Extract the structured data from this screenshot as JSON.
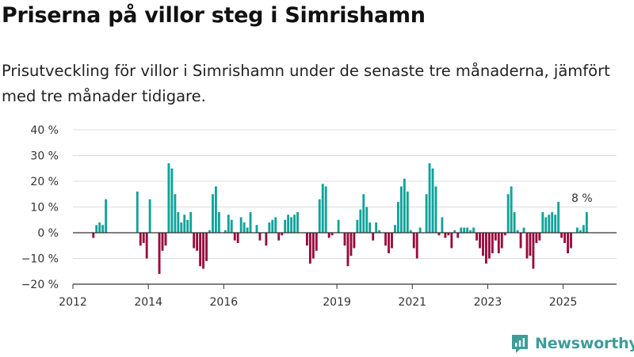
{
  "title": "Priserna på villor steg i Simrishamn",
  "subtitle": "Prisutveckling för villor i Simrishamn under de senaste tre månaderna, jämfört med tre månader tidigare.",
  "brand": {
    "name": "Newsworthy",
    "color": "#3e9d9a"
  },
  "chart_data": {
    "type": "bar",
    "x_unit": "month",
    "ylim": [
      -20,
      40
    ],
    "yticks": [
      -20,
      -10,
      0,
      10,
      20,
      30,
      40
    ],
    "ytick_labels": [
      "−20 %",
      "−10 %",
      "0 %",
      "10 %",
      "20 %",
      "30 %",
      "40 %"
    ],
    "xlim": [
      "2012-01",
      "2026-06"
    ],
    "xticks": [
      "2012-01",
      "2014-01",
      "2016-01",
      "2019-01",
      "2021-01",
      "2023-01",
      "2025-01"
    ],
    "xtick_labels": [
      "2012",
      "2014",
      "2016",
      "2019",
      "2021",
      "2023",
      "2025"
    ],
    "grid": true,
    "positive_color": "#0fa39a",
    "negative_color": "#990a3c",
    "annotation": {
      "text": "8 %",
      "x": "2025-07",
      "y": 8
    },
    "bars": [
      {
        "x": "2012-07",
        "y": -2
      },
      {
        "x": "2012-08",
        "y": 3
      },
      {
        "x": "2012-09",
        "y": 4
      },
      {
        "x": "2012-10",
        "y": 3
      },
      {
        "x": "2012-11",
        "y": 13
      },
      {
        "x": "2013-09",
        "y": 16
      },
      {
        "x": "2013-10",
        "y": -5
      },
      {
        "x": "2013-11",
        "y": -4
      },
      {
        "x": "2013-12",
        "y": -10
      },
      {
        "x": "2014-01",
        "y": 13
      },
      {
        "x": "2014-04",
        "y": -16
      },
      {
        "x": "2014-05",
        "y": -7
      },
      {
        "x": "2014-06",
        "y": -5
      },
      {
        "x": "2014-07",
        "y": 27
      },
      {
        "x": "2014-08",
        "y": 25
      },
      {
        "x": "2014-09",
        "y": 15
      },
      {
        "x": "2014-10",
        "y": 8
      },
      {
        "x": "2014-11",
        "y": 4
      },
      {
        "x": "2014-12",
        "y": 7
      },
      {
        "x": "2015-01",
        "y": 5
      },
      {
        "x": "2015-02",
        "y": 8
      },
      {
        "x": "2015-03",
        "y": -6
      },
      {
        "x": "2015-04",
        "y": -7
      },
      {
        "x": "2015-05",
        "y": -13
      },
      {
        "x": "2015-06",
        "y": -14
      },
      {
        "x": "2015-07",
        "y": -11
      },
      {
        "x": "2015-08",
        "y": 1
      },
      {
        "x": "2015-09",
        "y": 15
      },
      {
        "x": "2015-10",
        "y": 18
      },
      {
        "x": "2015-11",
        "y": 8
      },
      {
        "x": "2016-01",
        "y": 1
      },
      {
        "x": "2016-02",
        "y": 7
      },
      {
        "x": "2016-03",
        "y": 5
      },
      {
        "x": "2016-04",
        "y": -3
      },
      {
        "x": "2016-05",
        "y": -4
      },
      {
        "x": "2016-06",
        "y": 6
      },
      {
        "x": "2016-07",
        "y": 4
      },
      {
        "x": "2016-08",
        "y": 2
      },
      {
        "x": "2016-09",
        "y": 8
      },
      {
        "x": "2016-11",
        "y": 3
      },
      {
        "x": "2016-12",
        "y": -3
      },
      {
        "x": "2017-02",
        "y": -5
      },
      {
        "x": "2017-03",
        "y": 4
      },
      {
        "x": "2017-04",
        "y": 5
      },
      {
        "x": "2017-05",
        "y": 6
      },
      {
        "x": "2017-06",
        "y": -3
      },
      {
        "x": "2017-07",
        "y": -1
      },
      {
        "x": "2017-08",
        "y": 5
      },
      {
        "x": "2017-09",
        "y": 7
      },
      {
        "x": "2017-10",
        "y": 6
      },
      {
        "x": "2017-11",
        "y": 7
      },
      {
        "x": "2017-12",
        "y": 8
      },
      {
        "x": "2018-03",
        "y": -5
      },
      {
        "x": "2018-04",
        "y": -12
      },
      {
        "x": "2018-05",
        "y": -10
      },
      {
        "x": "2018-06",
        "y": -7
      },
      {
        "x": "2018-07",
        "y": 13
      },
      {
        "x": "2018-08",
        "y": 19
      },
      {
        "x": "2018-09",
        "y": 18
      },
      {
        "x": "2018-10",
        "y": -2
      },
      {
        "x": "2018-11",
        "y": -1
      },
      {
        "x": "2019-01",
        "y": 5
      },
      {
        "x": "2019-03",
        "y": -5
      },
      {
        "x": "2019-04",
        "y": -13
      },
      {
        "x": "2019-05",
        "y": -9
      },
      {
        "x": "2019-06",
        "y": -6
      },
      {
        "x": "2019-07",
        "y": 5
      },
      {
        "x": "2019-08",
        "y": 9
      },
      {
        "x": "2019-09",
        "y": 15
      },
      {
        "x": "2019-10",
        "y": 10
      },
      {
        "x": "2019-11",
        "y": 4
      },
      {
        "x": "2019-12",
        "y": -3
      },
      {
        "x": "2020-01",
        "y": 4
      },
      {
        "x": "2020-02",
        "y": 1
      },
      {
        "x": "2020-04",
        "y": -5
      },
      {
        "x": "2020-05",
        "y": -8
      },
      {
        "x": "2020-06",
        "y": -6
      },
      {
        "x": "2020-07",
        "y": 3
      },
      {
        "x": "2020-08",
        "y": 12
      },
      {
        "x": "2020-09",
        "y": 18
      },
      {
        "x": "2020-10",
        "y": 21
      },
      {
        "x": "2020-11",
        "y": 16
      },
      {
        "x": "2020-12",
        "y": 1
      },
      {
        "x": "2021-01",
        "y": -6
      },
      {
        "x": "2021-02",
        "y": -10
      },
      {
        "x": "2021-03",
        "y": 2
      },
      {
        "x": "2021-05",
        "y": 15
      },
      {
        "x": "2021-06",
        "y": 27
      },
      {
        "x": "2021-07",
        "y": 25
      },
      {
        "x": "2021-08",
        "y": 18
      },
      {
        "x": "2021-09",
        "y": -1
      },
      {
        "x": "2021-10",
        "y": 6
      },
      {
        "x": "2021-11",
        "y": -2
      },
      {
        "x": "2021-12",
        "y": -1
      },
      {
        "x": "2022-01",
        "y": -6
      },
      {
        "x": "2022-02",
        "y": 1
      },
      {
        "x": "2022-03",
        "y": -2
      },
      {
        "x": "2022-04",
        "y": 2
      },
      {
        "x": "2022-05",
        "y": 2
      },
      {
        "x": "2022-06",
        "y": 2
      },
      {
        "x": "2022-07",
        "y": 1
      },
      {
        "x": "2022-08",
        "y": 2
      },
      {
        "x": "2022-09",
        "y": -3
      },
      {
        "x": "2022-10",
        "y": -6
      },
      {
        "x": "2022-11",
        "y": -9
      },
      {
        "x": "2022-12",
        "y": -12
      },
      {
        "x": "2023-01",
        "y": -10
      },
      {
        "x": "2023-02",
        "y": -8
      },
      {
        "x": "2023-03",
        "y": -3
      },
      {
        "x": "2023-04",
        "y": -8
      },
      {
        "x": "2023-05",
        "y": -6
      },
      {
        "x": "2023-06",
        "y": -1
      },
      {
        "x": "2023-07",
        "y": 15
      },
      {
        "x": "2023-08",
        "y": 18
      },
      {
        "x": "2023-09",
        "y": 8
      },
      {
        "x": "2023-10",
        "y": 1
      },
      {
        "x": "2023-11",
        "y": -6
      },
      {
        "x": "2023-12",
        "y": 2
      },
      {
        "x": "2024-01",
        "y": -10
      },
      {
        "x": "2024-02",
        "y": -9
      },
      {
        "x": "2024-03",
        "y": -14
      },
      {
        "x": "2024-04",
        "y": -4
      },
      {
        "x": "2024-05",
        "y": -3
      },
      {
        "x": "2024-06",
        "y": 8
      },
      {
        "x": "2024-07",
        "y": 6
      },
      {
        "x": "2024-08",
        "y": 7
      },
      {
        "x": "2024-09",
        "y": 8
      },
      {
        "x": "2024-10",
        "y": 7
      },
      {
        "x": "2024-11",
        "y": 12
      },
      {
        "x": "2024-12",
        "y": -2
      },
      {
        "x": "2025-01",
        "y": -4
      },
      {
        "x": "2025-02",
        "y": -8
      },
      {
        "x": "2025-03",
        "y": -6
      },
      {
        "x": "2025-05",
        "y": 2
      },
      {
        "x": "2025-06",
        "y": 1
      },
      {
        "x": "2025-07",
        "y": 3
      },
      {
        "x": "2025-08",
        "y": 8
      }
    ]
  }
}
